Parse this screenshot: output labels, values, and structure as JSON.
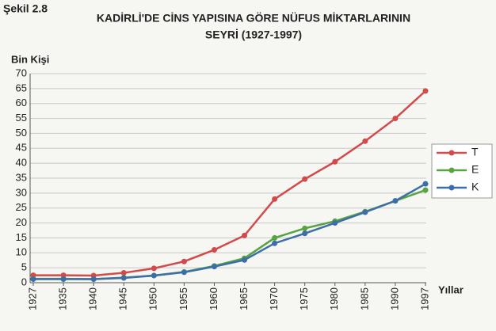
{
  "chart_data": {
    "type": "line",
    "figure_label": "Şekil 2.8",
    "title": [
      "KADİRLİ'DE CİNS YAPISINA GÖRE NÜFUS MİKTARLARININ",
      "SEYRİ (1927-1997)"
    ],
    "y_label": "Bin Kişi",
    "x_label": "Yıllar",
    "categories": [
      "1927",
      "1935",
      "1940",
      "1945",
      "1950",
      "1955",
      "1960",
      "1965",
      "1970",
      "1975",
      "1980",
      "1985",
      "1990",
      "1997"
    ],
    "series": [
      {
        "name": "T",
        "color": "#d24a4a",
        "values": [
          2.5,
          2.5,
          2.4,
          3.3,
          4.8,
          7.1,
          11,
          15.8,
          28,
          34.7,
          40.5,
          47.4,
          55,
          64.2
        ]
      },
      {
        "name": "E",
        "color": "#58a443",
        "values": [
          1.3,
          1.3,
          1.2,
          1.7,
          2.4,
          3.6,
          5.6,
          8.2,
          15,
          18.2,
          20.6,
          23.8,
          27.4,
          31
        ]
      },
      {
        "name": "K",
        "color": "#3d6ea8",
        "values": [
          1.2,
          1.2,
          1.2,
          1.6,
          2.4,
          3.5,
          5.4,
          7.6,
          13.2,
          16.5,
          20,
          23.6,
          27.4,
          33.1
        ]
      }
    ],
    "ylim": [
      0,
      70
    ],
    "yticks": [
      0,
      5,
      10,
      15,
      20,
      25,
      30,
      35,
      40,
      45,
      50,
      55,
      60,
      65,
      70
    ],
    "grid": true,
    "legend": "right"
  }
}
